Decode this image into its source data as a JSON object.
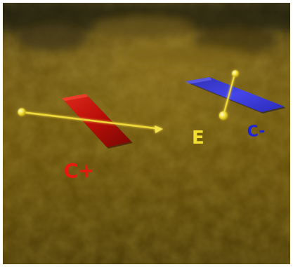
{
  "scene": {
    "labels": {
      "positive": "C+",
      "negative": "C-",
      "field": "E"
    },
    "colors": {
      "background": "#6b5408",
      "positive_plate": "#c4120c",
      "negative_plate": "#3f3fe0",
      "field_vector": "#f4e04a",
      "positive_label": "#e8190f",
      "negative_label": "#1c23e0",
      "field_label": "#f1de2e"
    },
    "icons": [
      "positive-plate",
      "negative-plate",
      "field-arrow",
      "dipole-vector"
    ]
  }
}
